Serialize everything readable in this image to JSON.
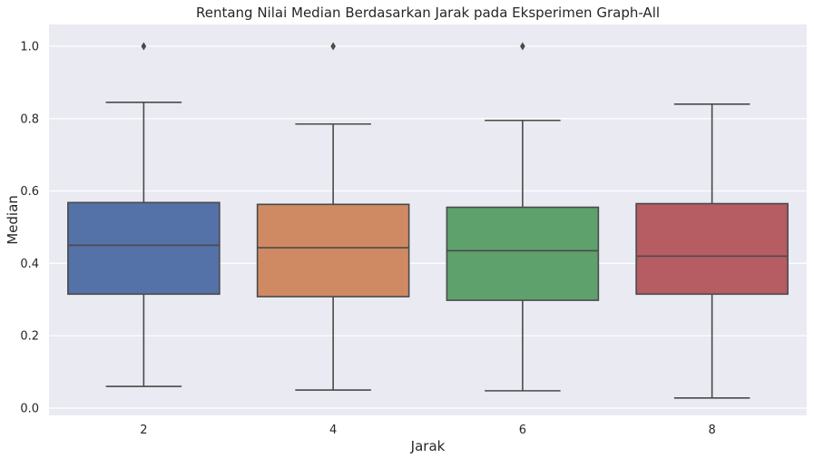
{
  "chart_data": {
    "type": "box",
    "title": "Rentang Nilai Median Berdasarkan Jarak pada Eksperimen Graph-All",
    "xlabel": "Jarak",
    "ylabel": "Median",
    "categories": [
      "2",
      "4",
      "6",
      "8"
    ],
    "ylim": [
      -0.02,
      1.06
    ],
    "yticks": [
      0.0,
      0.2,
      0.4,
      0.6,
      0.8,
      1.0
    ],
    "ytick_labels": [
      "0.0",
      "0.2",
      "0.4",
      "0.6",
      "0.8",
      "1.0"
    ],
    "grid": true,
    "boxes": [
      {
        "category": "2",
        "whisker_low": 0.06,
        "q1": 0.315,
        "median": 0.45,
        "q3": 0.568,
        "whisker_high": 0.845,
        "outliers": [
          1.0
        ],
        "color": "#5471a8"
      },
      {
        "category": "4",
        "whisker_low": 0.05,
        "q1": 0.308,
        "median": 0.443,
        "q3": 0.563,
        "whisker_high": 0.785,
        "outliers": [
          1.0
        ],
        "color": "#d08a63"
      },
      {
        "category": "6",
        "whisker_low": 0.048,
        "q1": 0.298,
        "median": 0.435,
        "q3": 0.555,
        "whisker_high": 0.795,
        "outliers": [
          1.0
        ],
        "color": "#5ea16d"
      },
      {
        "category": "8",
        "whisker_low": 0.028,
        "q1": 0.315,
        "median": 0.42,
        "q3": 0.565,
        "whisker_high": 0.84,
        "outliers": [],
        "color": "#b65c63"
      }
    ]
  },
  "colors": {
    "plot_background": "#eaeaf2",
    "gridline": "#ffffff",
    "lines": "#4a4a4a"
  }
}
